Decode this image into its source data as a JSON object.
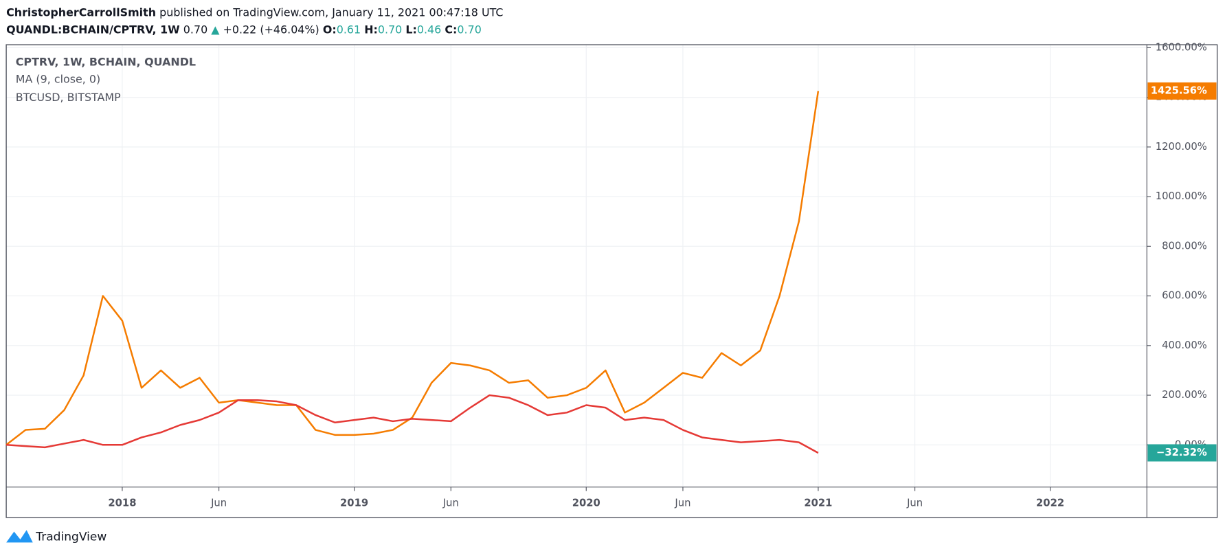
{
  "header": {
    "author": "ChristopherCarrollSmith",
    "published": "published on TradingView.com, January 11, 2021 00:47:18 UTC",
    "symbol": "QUANDL:BCHAIN/CPTRV, 1W",
    "last": "0.70",
    "arrow": "▲",
    "change": "+0.22 (+46.04%)",
    "ohlc": [
      {
        "key": "O:",
        "value": "0.61"
      },
      {
        "key": "H:",
        "value": "0.70"
      },
      {
        "key": "L:",
        "value": "0.46"
      },
      {
        "key": "C:",
        "value": "0.70"
      }
    ]
  },
  "chart_data": {
    "type": "line",
    "indicator": "MA (9, close, 0)",
    "grid": true,
    "x": [
      "2017-07",
      "2017-08",
      "2017-09",
      "2017-10",
      "2017-11",
      "2017-12",
      "2018-01",
      "2018-02",
      "2018-03",
      "2018-04",
      "2018-05",
      "2018-06",
      "2018-07",
      "2018-08",
      "2018-09",
      "2018-10",
      "2018-11",
      "2018-12",
      "2019-01",
      "2019-02",
      "2019-03",
      "2019-04",
      "2019-05",
      "2019-06",
      "2019-07",
      "2019-08",
      "2019-09",
      "2019-10",
      "2019-11",
      "2019-12",
      "2020-01",
      "2020-02",
      "2020-03",
      "2020-04",
      "2020-05",
      "2020-06",
      "2020-07",
      "2020-08",
      "2020-09",
      "2020-10",
      "2020-11",
      "2020-12",
      "2021-01"
    ],
    "series": [
      {
        "name": "CPTRV, 1W, BCHAIN, QUANDL",
        "color": "#f57c00",
        "label_color": "#f57c00",
        "last_label": "1425.56%",
        "values": [
          0,
          60,
          65,
          140,
          280,
          600,
          500,
          230,
          300,
          230,
          270,
          170,
          180,
          170,
          160,
          160,
          60,
          40,
          40,
          45,
          60,
          110,
          250,
          330,
          320,
          300,
          250,
          260,
          190,
          200,
          230,
          300,
          130,
          170,
          230,
          290,
          270,
          370,
          320,
          380,
          600,
          900,
          1425.56
        ]
      },
      {
        "name": "BTCUSD, BITSTAMP",
        "color": "#e53935",
        "label_color": "#26a69a",
        "last_label": "−32.32%",
        "values": [
          0,
          -5,
          -10,
          5,
          20,
          0,
          0,
          30,
          50,
          80,
          100,
          130,
          180,
          180,
          175,
          160,
          120,
          90,
          100,
          110,
          95,
          105,
          100,
          95,
          150,
          200,
          190,
          160,
          120,
          130,
          160,
          150,
          100,
          110,
          100,
          60,
          30,
          20,
          10,
          15,
          20,
          10,
          -32.32
        ]
      }
    ],
    "xlim": [
      "2017-07",
      "2022-06"
    ],
    "xticks": [
      {
        "value": "2018-01",
        "label": "2018"
      },
      {
        "value": "2018-06",
        "label": "Jun"
      },
      {
        "value": "2019-01",
        "label": "2019"
      },
      {
        "value": "2019-06",
        "label": "Jun"
      },
      {
        "value": "2020-01",
        "label": "2020"
      },
      {
        "value": "2020-06",
        "label": "Jun"
      },
      {
        "value": "2021-01",
        "label": "2021"
      },
      {
        "value": "2021-06",
        "label": "Jun"
      },
      {
        "value": "2022-01",
        "label": "2022"
      }
    ],
    "ylim": [
      -170,
      1612
    ],
    "yticks": [
      {
        "value": 0,
        "label": "0.00%"
      },
      {
        "value": 200,
        "label": "200.00%"
      },
      {
        "value": 400,
        "label": "400.00%"
      },
      {
        "value": 600,
        "label": "600.00%"
      },
      {
        "value": 800,
        "label": "800.00%"
      },
      {
        "value": 1000,
        "label": "1000.00%"
      },
      {
        "value": 1200,
        "label": "1200.00%"
      },
      {
        "value": 1400,
        "label": "1400.00%"
      },
      {
        "value": 1600,
        "label": "1600.00%"
      }
    ]
  },
  "footer": {
    "brand": "TradingView"
  }
}
